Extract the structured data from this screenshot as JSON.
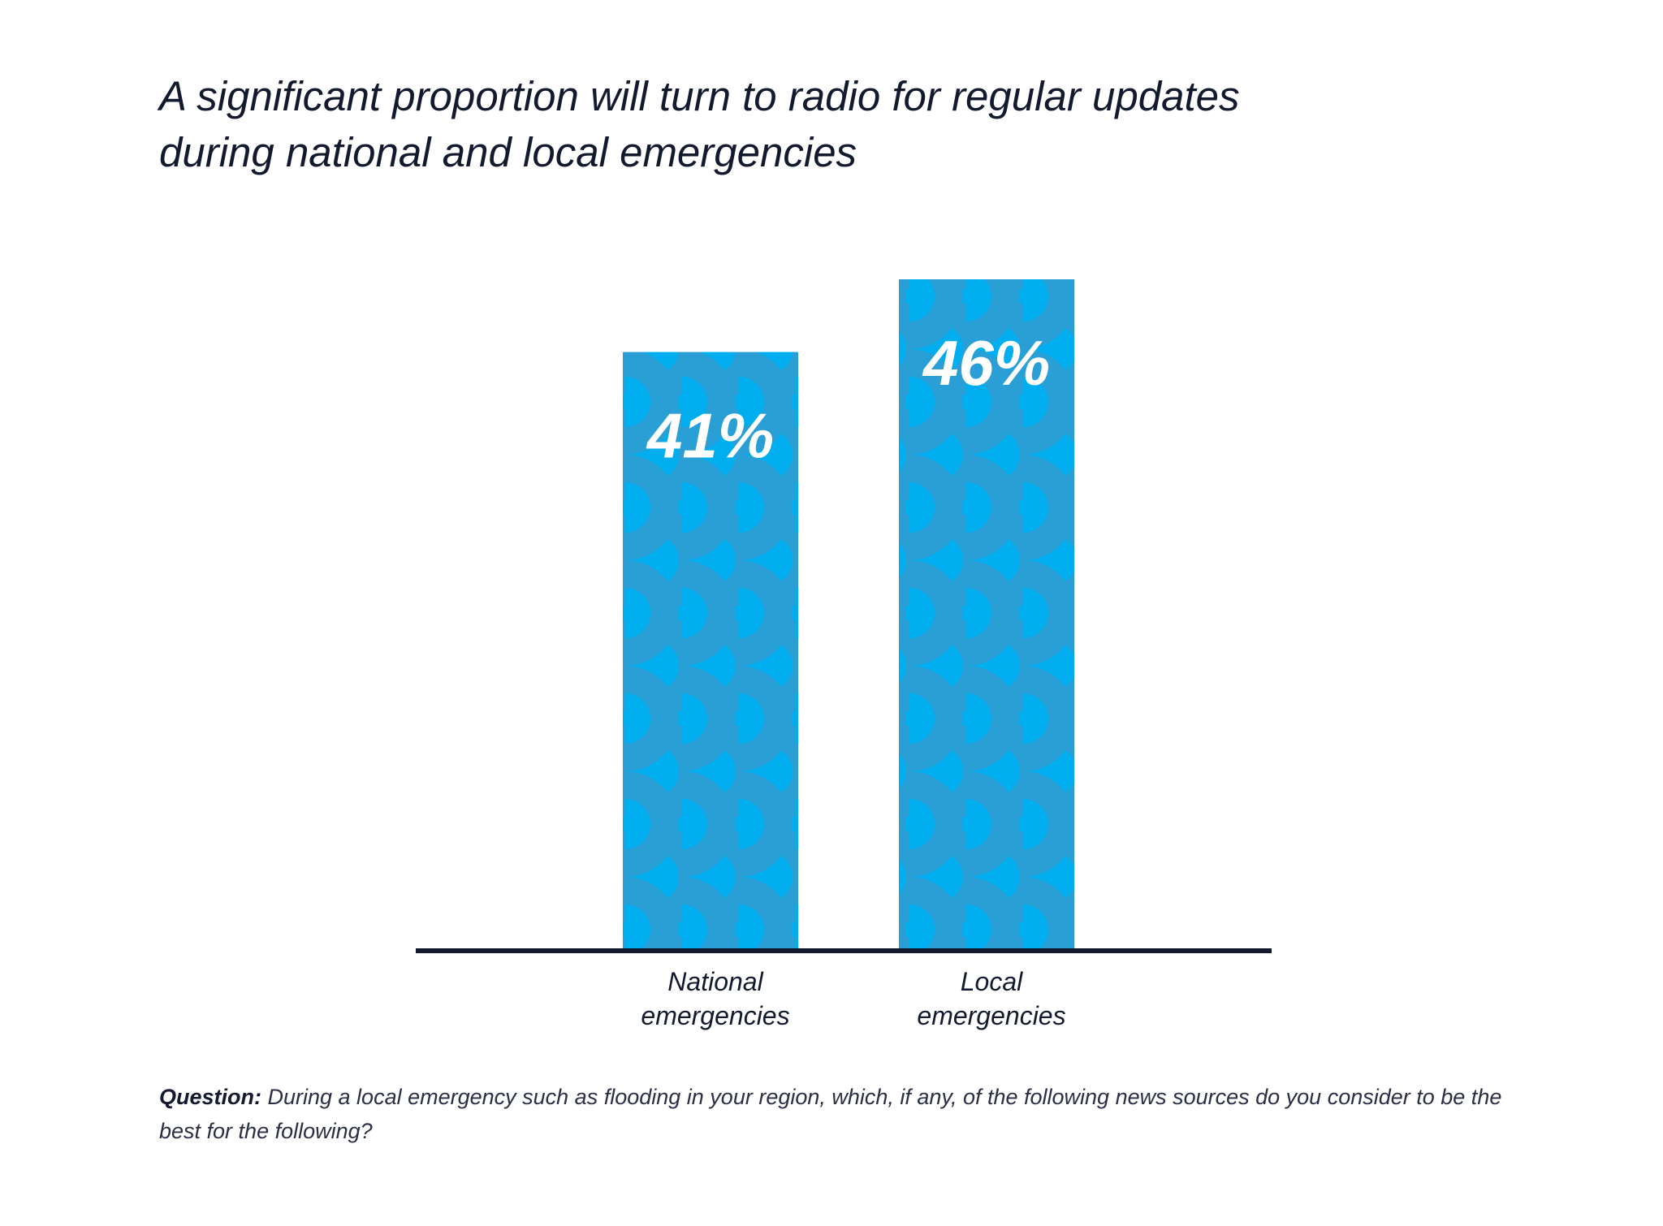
{
  "title": {
    "line1": "A significant proportion will turn to radio for regular updates",
    "line2": "during national and local emergencies"
  },
  "colors": {
    "bar_base": "#00adef",
    "bar_pattern": "#2a9fd6",
    "axis": "#131a2e",
    "text": "#131a2e",
    "value_label": "#ffffff"
  },
  "chart_data": {
    "type": "bar",
    "categories": [
      [
        "National",
        "emergencies"
      ],
      [
        "Local",
        "emergencies"
      ]
    ],
    "values": [
      41,
      46
    ],
    "value_labels": [
      "41%",
      "46%"
    ],
    "ylim": [
      0,
      46
    ],
    "grid": false,
    "legend": "none"
  },
  "footnote": {
    "question_label": "Question:",
    "text": " During a local emergency such as flooding in your region, which, if any, of the following news sources do you consider to be the best for the following?"
  }
}
